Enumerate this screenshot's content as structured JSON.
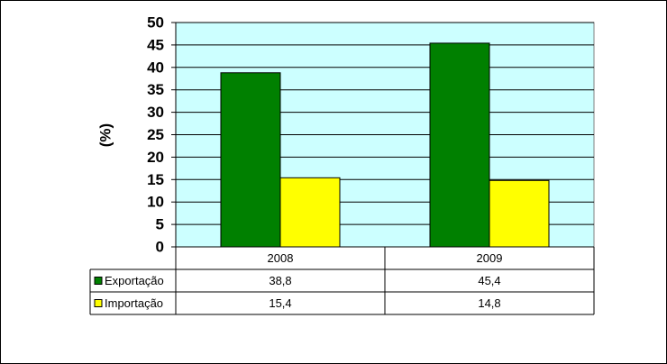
{
  "chart_data": {
    "type": "bar",
    "y_label": "(%)",
    "categories": [
      "2008",
      "2009"
    ],
    "series": [
      {
        "name": "Exportação",
        "color": "#008000",
        "values": [
          38.8,
          45.4
        ],
        "value_labels": [
          "38,8",
          "45,4"
        ]
      },
      {
        "name": "Importação",
        "color": "#ffff00",
        "values": [
          15.4,
          14.8
        ],
        "value_labels": [
          "15,4",
          "14,8"
        ]
      }
    ],
    "ylim": [
      0,
      50
    ],
    "yticks": [
      0,
      5,
      10,
      15,
      20,
      25,
      30,
      35,
      40,
      45,
      50
    ],
    "grid": true,
    "plot_background": "#ccffff"
  }
}
